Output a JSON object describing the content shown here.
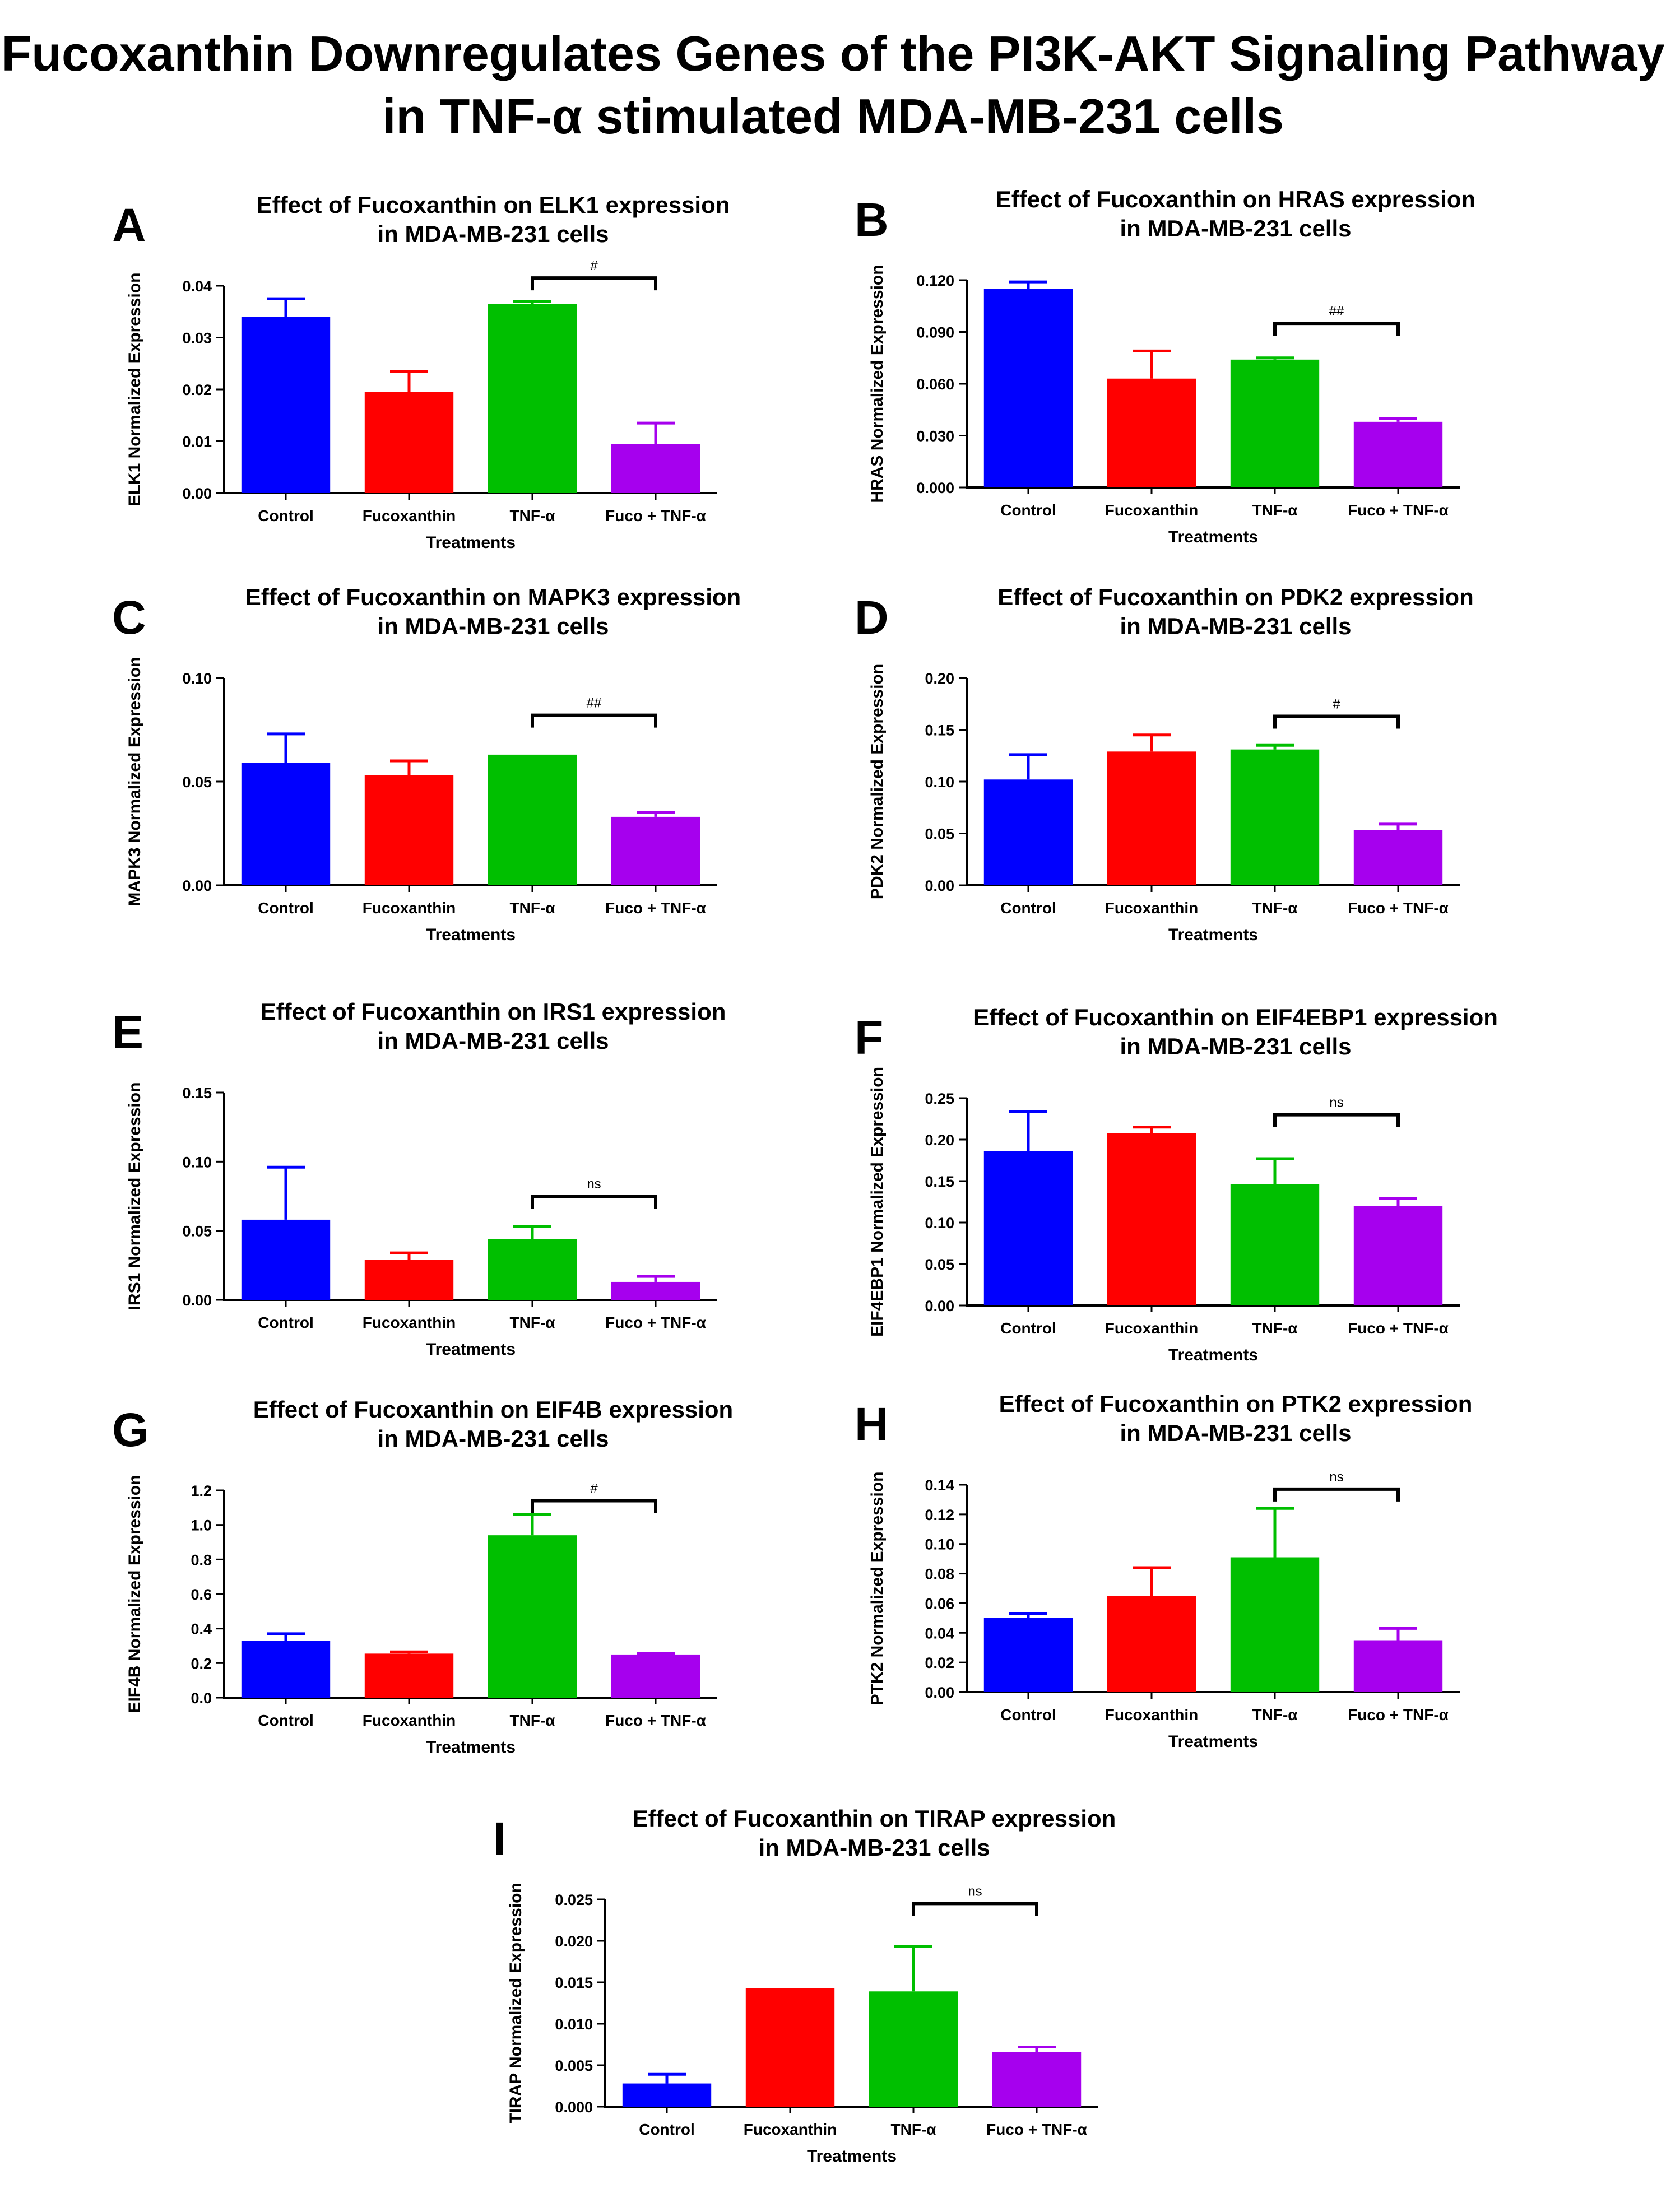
{
  "page_title": {
    "line1": "Fucoxanthin Downregulates Genes of the PI3K-AKT Signaling Pathway",
    "line2": "in TNF-α stimulated MDA-MB-231 cells"
  },
  "colors": {
    "Control": "#0000ff",
    "Fucoxanthin": "#ff0000",
    "TNF-α": "#00bf00",
    "Fuco + TNF-α": "#a600ee"
  },
  "chart_data": [
    {
      "letter": "A",
      "type": "bar",
      "title": [
        "Effect of Fucoxanthin on ELK1 expression",
        "in MDA-MB-231 cells"
      ],
      "xlabel": "Treatments",
      "ylabel": "ELK1 Normalized Expression",
      "categories": [
        "Control",
        "Fucoxanthin",
        "TNF-α",
        "Fuco + TNF-α"
      ],
      "values": [
        0.034,
        0.0195,
        0.0365,
        0.0095
      ],
      "errors": [
        0.0035,
        0.004,
        0.0005,
        0.004
      ],
      "ylim": [
        0,
        0.04
      ],
      "yticks": [
        "0.00",
        "0.01",
        "0.02",
        "0.03",
        "0.04"
      ],
      "significance": {
        "label": "#",
        "from": 2,
        "to": 3,
        "y": 0.0415
      }
    },
    {
      "letter": "B",
      "type": "bar",
      "title": [
        "Effect of Fucoxanthin on HRAS expression",
        "in MDA-MB-231 cells"
      ],
      "xlabel": "Treatments",
      "ylabel": "HRAS Normalized Expression",
      "categories": [
        "Control",
        "Fucoxanthin",
        "TNF-α",
        "Fuco + TNF-α"
      ],
      "values": [
        0.115,
        0.063,
        0.074,
        0.038
      ],
      "errors": [
        0.004,
        0.016,
        0.001,
        0.002
      ],
      "ylim": [
        0,
        0.12
      ],
      "yticks": [
        "0.000",
        "0.030",
        "0.060",
        "0.090",
        "0.120"
      ],
      "significance": {
        "label": "##",
        "from": 2,
        "to": 3,
        "y": 0.095
      }
    },
    {
      "letter": "C",
      "type": "bar",
      "title": [
        "Effect of Fucoxanthin on MAPK3 expression",
        "in MDA-MB-231 cells"
      ],
      "xlabel": "Treatments",
      "ylabel": "MAPK3 Normalized Expression",
      "categories": [
        "Control",
        "Fucoxanthin",
        "TNF-α",
        "Fuco + TNF-α"
      ],
      "values": [
        0.059,
        0.053,
        0.063,
        0.033
      ],
      "errors": [
        0.014,
        0.007,
        0.0,
        0.002
      ],
      "ylim": [
        0,
        0.1
      ],
      "yticks": [
        "0.00",
        "0.05",
        "0.10"
      ],
      "significance": {
        "label": "##",
        "from": 2,
        "to": 3,
        "y": 0.082
      }
    },
    {
      "letter": "D",
      "type": "bar",
      "title": [
        "Effect of Fucoxanthin on PDK2 expression",
        "in MDA-MB-231 cells"
      ],
      "xlabel": "Treatments",
      "ylabel": "PDK2 Normalized Expression",
      "categories": [
        "Control",
        "Fucoxanthin",
        "TNF-α",
        "Fuco + TNF-α"
      ],
      "values": [
        0.102,
        0.129,
        0.131,
        0.053
      ],
      "errors": [
        0.024,
        0.016,
        0.004,
        0.006
      ],
      "ylim": [
        0,
        0.2
      ],
      "yticks": [
        "0.00",
        "0.05",
        "0.10",
        "0.15",
        "0.20"
      ],
      "significance": {
        "label": "#",
        "from": 2,
        "to": 3,
        "y": 0.163
      }
    },
    {
      "letter": "E",
      "type": "bar",
      "title": [
        "Effect of Fucoxanthin on IRS1 expression",
        "in MDA-MB-231 cells"
      ],
      "xlabel": "Treatments",
      "ylabel": "IRS1 Normalized Expression",
      "categories": [
        "Control",
        "Fucoxanthin",
        "TNF-α",
        "Fuco + TNF-α"
      ],
      "values": [
        0.058,
        0.029,
        0.044,
        0.013
      ],
      "errors": [
        0.038,
        0.005,
        0.009,
        0.004
      ],
      "ylim": [
        0,
        0.15
      ],
      "yticks": [
        "0.00",
        "0.05",
        "0.10",
        "0.15"
      ],
      "significance": {
        "label": "ns",
        "from": 2,
        "to": 3,
        "y": 0.075
      }
    },
    {
      "letter": "F",
      "type": "bar",
      "title": [
        "Effect of Fucoxanthin on EIF4EBP1 expression",
        "in MDA-MB-231 cells"
      ],
      "xlabel": "Treatments",
      "ylabel": "EIF4EBP1 Normalized Expression",
      "categories": [
        "Control",
        "Fucoxanthin",
        "TNF-α",
        "Fuco + TNF-α"
      ],
      "values": [
        0.186,
        0.208,
        0.146,
        0.12
      ],
      "errors": [
        0.048,
        0.007,
        0.031,
        0.009
      ],
      "ylim": [
        0,
        0.25
      ],
      "yticks": [
        "0.00",
        "0.05",
        "0.10",
        "0.15",
        "0.20",
        "0.25"
      ],
      "significance": {
        "label": "ns",
        "from": 2,
        "to": 3,
        "y": 0.23
      }
    },
    {
      "letter": "G",
      "type": "bar",
      "title": [
        "Effect of Fucoxanthin on EIF4B expression",
        "in MDA-MB-231 cells"
      ],
      "xlabel": "Treatments",
      "ylabel": "EIF4B Normalized Expression",
      "categories": [
        "Control",
        "Fucoxanthin",
        "TNF-α",
        "Fuco + TNF-α"
      ],
      "values": [
        0.33,
        0.255,
        0.94,
        0.25
      ],
      "errors": [
        0.04,
        0.01,
        0.12,
        0.005
      ],
      "ylim": [
        0,
        1.2
      ],
      "yticks": [
        "0.0",
        "0.2",
        "0.4",
        "0.6",
        "0.8",
        "1.0",
        "1.2"
      ],
      "significance": {
        "label": "#",
        "from": 2,
        "to": 3,
        "y": 1.14
      }
    },
    {
      "letter": "H",
      "type": "bar",
      "title": [
        "Effect of Fucoxanthin on PTK2 expression",
        "in MDA-MB-231 cells"
      ],
      "xlabel": "Treatments",
      "ylabel": "PTK2 Normalized Expression",
      "categories": [
        "Control",
        "Fucoxanthin",
        "TNF-α",
        "Fuco + TNF-α"
      ],
      "values": [
        0.05,
        0.065,
        0.091,
        0.035
      ],
      "errors": [
        0.003,
        0.019,
        0.033,
        0.008
      ],
      "ylim": [
        0,
        0.14
      ],
      "yticks": [
        "0.00",
        "0.02",
        "0.04",
        "0.06",
        "0.08",
        "0.10",
        "0.12",
        "0.14"
      ],
      "significance": {
        "label": "ns",
        "from": 2,
        "to": 3,
        "y": 0.137
      }
    },
    {
      "letter": "I",
      "type": "bar",
      "title": [
        "Effect of Fucoxanthin on TIRAP expression",
        "in MDA-MB-231 cells"
      ],
      "xlabel": "Treatments",
      "ylabel": "TIRAP Normalized Expression",
      "categories": [
        "Control",
        "Fucoxanthin",
        "TNF-α",
        "Fuco + TNF-α"
      ],
      "values": [
        0.0028,
        0.0143,
        0.0139,
        0.0066
      ],
      "errors": [
        0.0011,
        0.0,
        0.0054,
        0.0006
      ],
      "ylim": [
        0,
        0.025
      ],
      "yticks": [
        "0.000",
        "0.005",
        "0.010",
        "0.015",
        "0.020",
        "0.025"
      ],
      "significance": {
        "label": "ns",
        "from": 2,
        "to": 3,
        "y": 0.0245
      }
    }
  ]
}
